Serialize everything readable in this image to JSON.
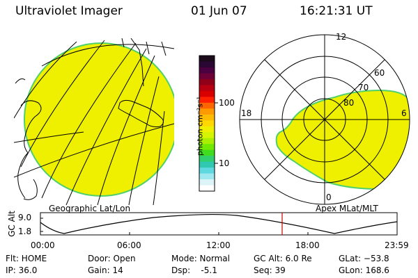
{
  "header": {
    "title": "Ultraviolet Imager",
    "date": "01 Jun 07",
    "time": "16:21:31 UT"
  },
  "colorbar": {
    "unit_label": "photon cm⁻²s⁻¹",
    "ticks": [
      "100",
      "10"
    ],
    "colors": [
      "#1a0a1a",
      "#2a0833",
      "#4a0040",
      "#6e0038",
      "#900018",
      "#b80010",
      "#d80000",
      "#ff2000",
      "#ff6600",
      "#ff9900",
      "#ffbb00",
      "#ffd800",
      "#eef000",
      "#d4f400",
      "#a8f000",
      "#70e800",
      "#40dc20",
      "#30d070",
      "#30c8b0",
      "#60d8e0",
      "#a0e8f0",
      "#dcf4f8",
      "#ffffff"
    ]
  },
  "left_map": {
    "label": "Geographic Lat/Lon"
  },
  "polar_map": {
    "label": "Apex MLat/MLT",
    "mlt_labels": {
      "top": "12",
      "left": "18",
      "right": "6",
      "bottom": "0"
    },
    "mlat_labels": [
      "60",
      "70",
      "80"
    ]
  },
  "altitude_plot": {
    "ylabel": "GC Alt",
    "yticks": [
      "9.0",
      "1.8"
    ],
    "xticks": [
      "00:00",
      "06:00",
      "12:00",
      "18:00",
      "23:59"
    ]
  },
  "info": {
    "flt": "Flt: HOME",
    "ip": "IP: 36.0",
    "door": "Door: Open",
    "gain": "Gain: 14",
    "mode": "Mode: Normal",
    "dsp": "Dsp:    -5.1",
    "gcalt": "GC Alt: 6.0 Re",
    "seq": "Seq: 39",
    "glat": "GLat: −53.8",
    "glon": "GLon: 168.6"
  },
  "colors": {
    "aurora": "#eef000",
    "edge": "#4fd06a",
    "marker": "#d00000"
  }
}
